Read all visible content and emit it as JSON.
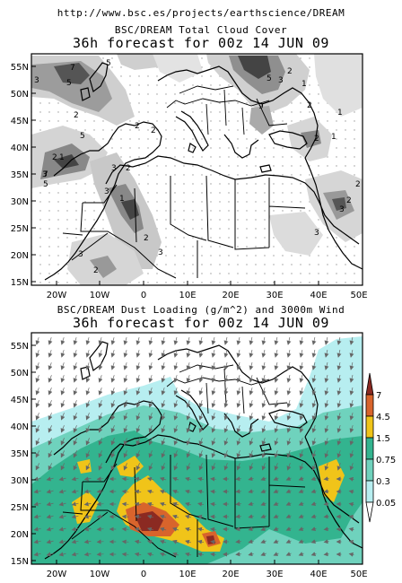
{
  "header": {
    "url": "http://www.bsc.es/projects/earthscience/DREAM"
  },
  "panels": [
    {
      "title": "BSC/DREAM Total Cloud Cover",
      "subtitle": "36h forecast for 00z 14 JUN 09",
      "lat_labels": [
        "55N",
        "50N",
        "45N",
        "40N",
        "35N",
        "30N",
        "25N",
        "20N",
        "15N"
      ],
      "lon_labels": [
        "20W",
        "10W",
        "0",
        "10E",
        "20E",
        "30E",
        "40E",
        "50E"
      ]
    },
    {
      "title": "BSC/DREAM Dust Loading (g/m^2) and 3000m Wind",
      "subtitle": "36h forecast for 00z 14 JUN 09",
      "lat_labels": [
        "55N",
        "50N",
        "45N",
        "40N",
        "35N",
        "30N",
        "25N",
        "20N",
        "15N"
      ],
      "lon_labels": [
        "20W",
        "10W",
        "0",
        "10E",
        "20E",
        "30E",
        "40E",
        "50E"
      ]
    }
  ],
  "colorbar": {
    "labels": [
      "7",
      "4.5",
      "1.5",
      "0.75",
      "0.3",
      "0.05"
    ],
    "colors": [
      "#8b2a22",
      "#d8642c",
      "#f0c419",
      "#33b48f",
      "#6fd2bd",
      "#b7eef0",
      "#ffffff"
    ]
  },
  "cloud_contour_labels": [
    "7",
    "5",
    "3",
    "5",
    "2",
    "5",
    "9",
    "3",
    "2",
    "1",
    "3",
    "2",
    "7",
    "5",
    "1",
    "5",
    "2",
    "2",
    "3",
    "2",
    "3",
    "1",
    "2",
    "3",
    "3",
    "2",
    "2",
    "1",
    "2",
    "1",
    "2",
    "3",
    "3",
    "2"
  ]
}
